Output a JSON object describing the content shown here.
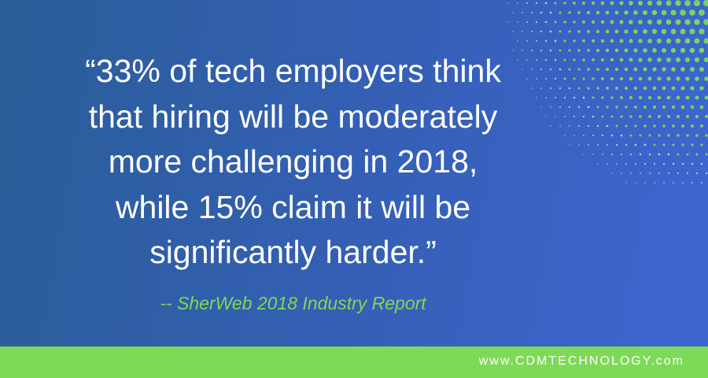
{
  "quote": {
    "lines": [
      "“33% of tech employers think",
      "that hiring will be moderately",
      "more challenging in 2018,",
      "while 15% claim it will be",
      "significantly harder.”"
    ]
  },
  "attribution": "-- SherWeb 2018 Industry Report",
  "footer": {
    "website": "www.CDMTECHNOLOGY.com"
  }
}
